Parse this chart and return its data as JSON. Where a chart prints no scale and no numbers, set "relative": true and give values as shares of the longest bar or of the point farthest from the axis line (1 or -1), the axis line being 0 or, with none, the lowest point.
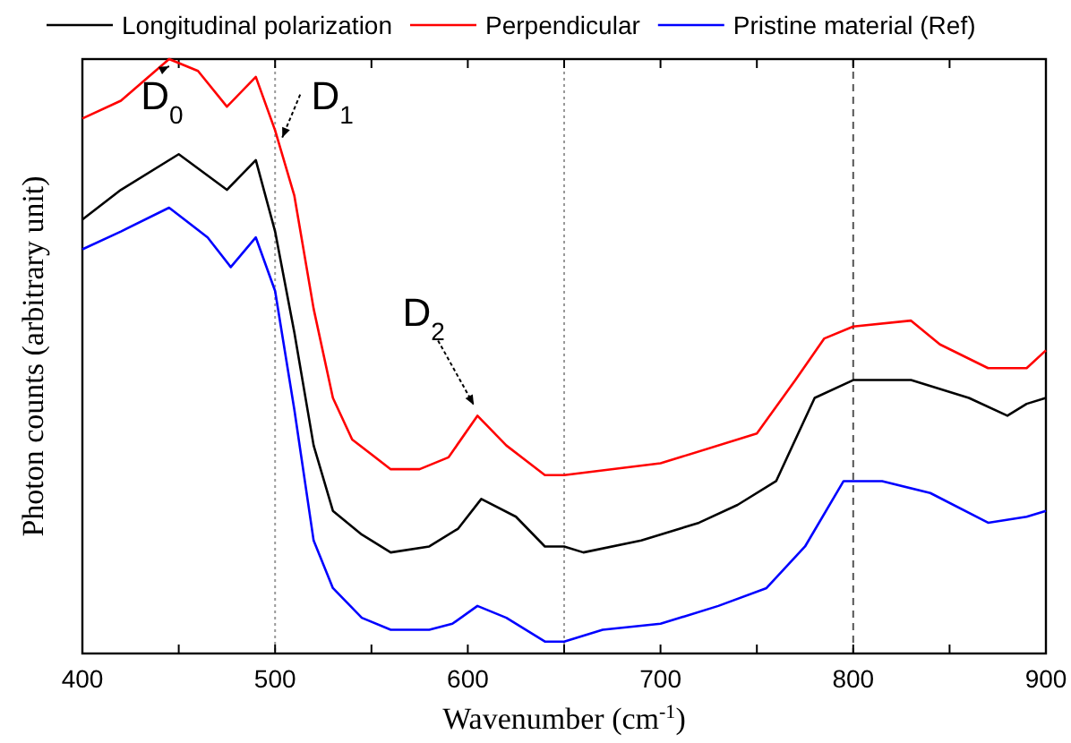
{
  "chart_data": {
    "type": "line",
    "relative": true,
    "xlabel": "Wavenumber (cm$^{-1}$)",
    "ylabel": "Photon counts (arbitrary unit)",
    "legend": "top",
    "line_style": "solid",
    "xlim": [
      400,
      900
    ],
    "xticks": [
      400,
      {
        "value": 450,
        "label": null
      },
      500,
      {
        "value": 550,
        "label": null
      },
      600,
      {
        "value": 650,
        "label": null
      },
      700,
      {
        "value": 750,
        "label": null
      },
      800,
      {
        "value": 850,
        "label": null
      },
      900
    ],
    "series": [
      {
        "name": "Longitudinal polarization",
        "color": "#000000",
        "x": [
          400,
          420,
          450,
          475,
          490,
          500,
          510,
          520,
          530,
          545,
          560,
          580,
          595,
          607,
          625,
          640,
          650,
          660,
          690,
          720,
          740,
          760,
          780,
          800,
          830,
          860,
          880,
          890,
          900
        ],
        "values": [
          0.73,
          0.78,
          0.84,
          0.78,
          0.83,
          0.71,
          0.54,
          0.35,
          0.24,
          0.2,
          0.17,
          0.18,
          0.21,
          0.26,
          0.23,
          0.18,
          0.18,
          0.17,
          0.19,
          0.22,
          0.25,
          0.29,
          0.43,
          0.46,
          0.46,
          0.43,
          0.4,
          0.42,
          0.43
        ]
      },
      {
        "name": "Perpendicular",
        "color": "#ff0000",
        "x": [
          400,
          420,
          445,
          460,
          475,
          490,
          500,
          510,
          520,
          530,
          540,
          560,
          575,
          590,
          605,
          620,
          640,
          650,
          700,
          750,
          770,
          785,
          800,
          830,
          845,
          870,
          890,
          900
        ],
        "values": [
          0.9,
          0.93,
          1.0,
          0.98,
          0.92,
          0.97,
          0.88,
          0.77,
          0.58,
          0.43,
          0.36,
          0.31,
          0.31,
          0.33,
          0.4,
          0.35,
          0.3,
          0.3,
          0.32,
          0.37,
          0.46,
          0.53,
          0.55,
          0.56,
          0.52,
          0.48,
          0.48,
          0.51
        ]
      },
      {
        "name": "Pristine material (Ref)",
        "color": "#0000ff",
        "x": [
          400,
          420,
          445,
          465,
          477,
          490,
          500,
          510,
          520,
          530,
          545,
          560,
          580,
          592,
          605,
          620,
          640,
          650,
          670,
          700,
          730,
          755,
          775,
          795,
          815,
          840,
          870,
          890,
          900
        ],
        "values": [
          0.68,
          0.71,
          0.75,
          0.7,
          0.65,
          0.7,
          0.61,
          0.41,
          0.19,
          0.11,
          0.06,
          0.04,
          0.04,
          0.05,
          0.08,
          0.06,
          0.02,
          0.02,
          0.04,
          0.05,
          0.08,
          0.11,
          0.18,
          0.29,
          0.29,
          0.27,
          0.22,
          0.23,
          0.24
        ]
      }
    ],
    "ref_lines": [
      {
        "axis": "x",
        "value": 500,
        "color": "#999999",
        "line_style": "dotted"
      },
      {
        "axis": "x",
        "value": 650,
        "color": "#999999",
        "line_style": "dotted"
      },
      {
        "axis": "x",
        "value": 800,
        "color": "#555555",
        "line_style": "dashed"
      }
    ],
    "annotations": [
      {
        "text": "D$_{0}$",
        "x": 445,
        "y": 1.0
      },
      {
        "text": "D$_{1}$",
        "x": 500,
        "y": 0.88
      },
      {
        "text": "D$_{2}$",
        "x": 605,
        "y": 0.4
      }
    ]
  }
}
